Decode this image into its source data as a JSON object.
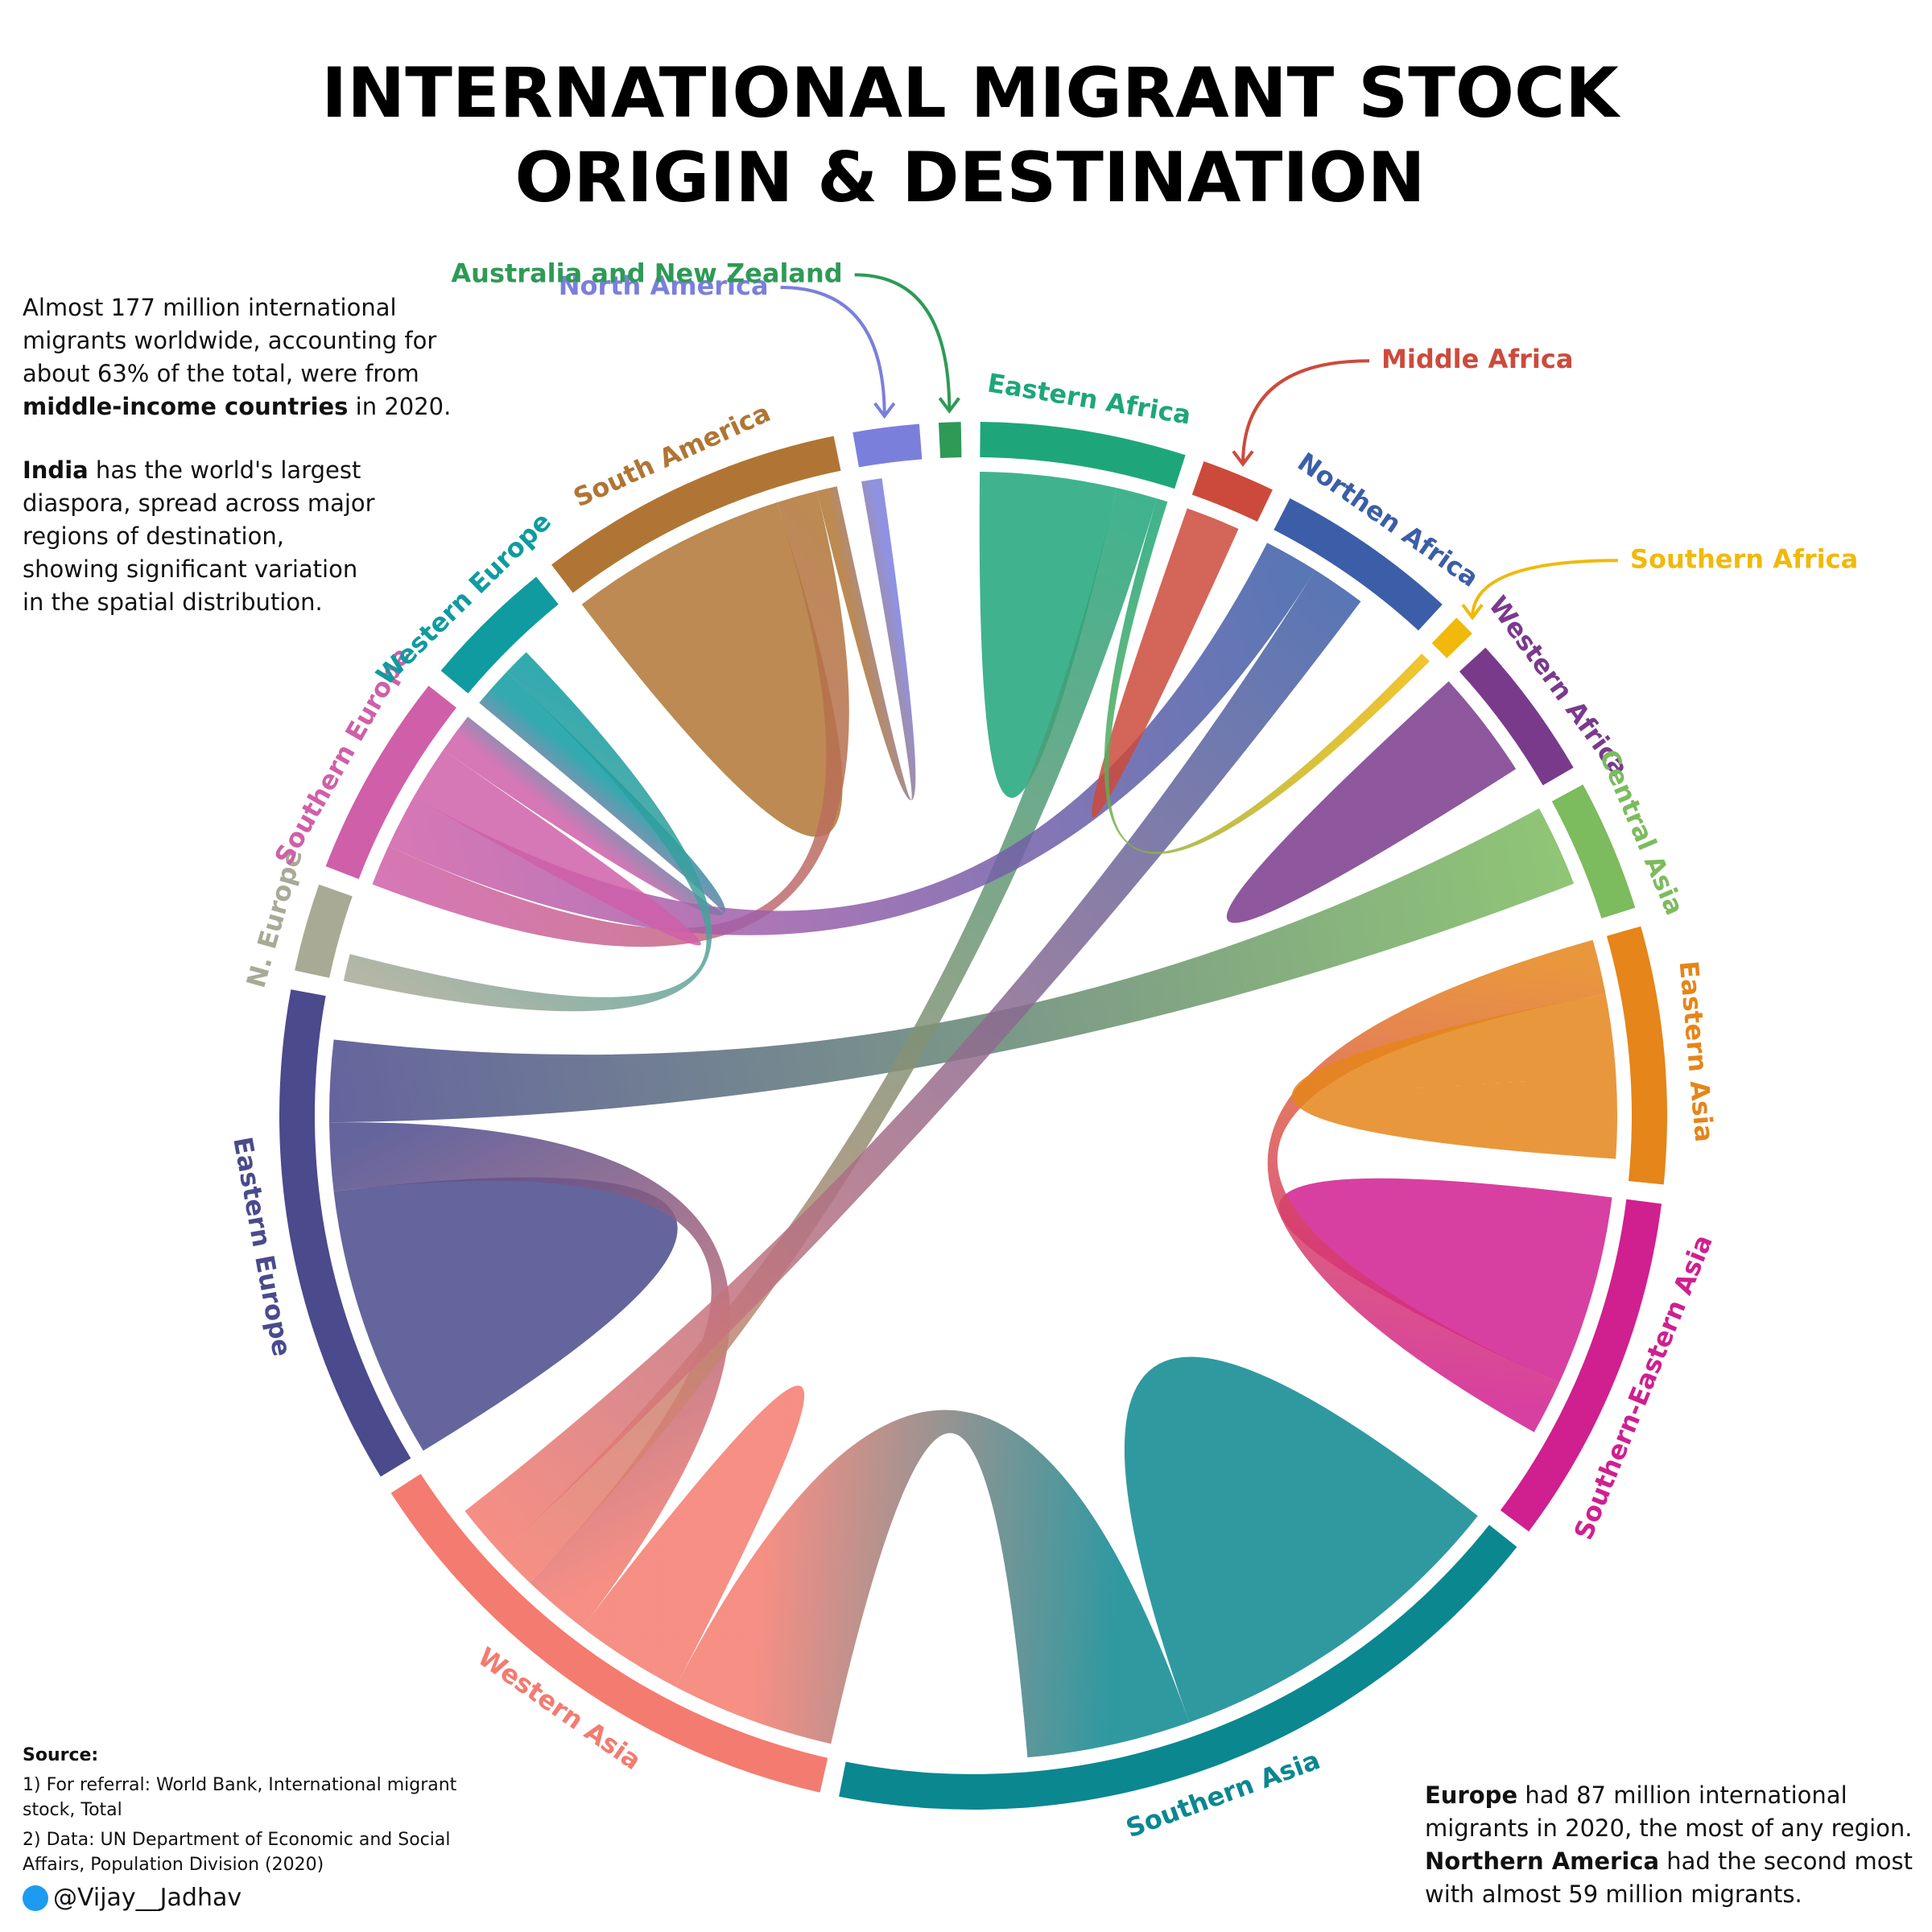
{
  "chart_data": {
    "type": "chord",
    "title": [
      "INTERNATIONAL MIGRANT STOCK",
      "ORIGIN & DESTINATION"
    ],
    "segments": [
      {
        "name": "North America",
        "color": "#7b7fdc",
        "value": 4.5
      },
      {
        "name": "Australia and New Zealand",
        "color": "#2e9a56",
        "value": 1.5
      },
      {
        "name": "Eastern Africa",
        "color": "#1ea67a",
        "value": 14
      },
      {
        "name": "Middle Africa",
        "color": "#cc4a3c",
        "value": 5
      },
      {
        "name": "Northen Africa",
        "color": "#3c5ea8",
        "value": 12.5
      },
      {
        "name": "Southern Africa",
        "color": "#f0b90b",
        "value": 1.5
      },
      {
        "name": "Western Africa",
        "color": "#7a3a8c",
        "value": 10
      },
      {
        "name": "Central Asia",
        "color": "#7cbb5e",
        "value": 9
      },
      {
        "name": "Eastern Asia",
        "color": "#e5851a",
        "value": 17.5
      },
      {
        "name": "Southern-Eastern Asia",
        "color": "#d01f8f",
        "value": 24
      },
      {
        "name": "Southern Asia",
        "color": "#0b8790",
        "value": 51
      },
      {
        "name": "Western Asia",
        "color": "#f47b6f",
        "value": 36
      },
      {
        "name": "Eastern Europe",
        "color": "#4a4a8c",
        "value": 34
      },
      {
        "name": "N. Europe",
        "color": "#a8aa96",
        "value": 6
      },
      {
        "name": "Southern Europe",
        "color": "#cf5fa9",
        "value": 14
      },
      {
        "name": "Western Europe",
        "color": "#0f9ba0",
        "value": 9
      },
      {
        "name": "South America",
        "color": "#b07534",
        "value": 21
      }
    ],
    "flows": [
      {
        "source": 10,
        "target": 10,
        "value": 13
      },
      {
        "source": 10,
        "target": 11,
        "value": 12
      },
      {
        "source": 11,
        "target": 11,
        "value": 4
      },
      {
        "source": 12,
        "target": 12,
        "value": 10
      },
      {
        "source": 12,
        "target": 11,
        "value": 5
      },
      {
        "source": 12,
        "target": 7,
        "value": 6
      },
      {
        "source": 9,
        "target": 9,
        "value": 7
      },
      {
        "source": 9,
        "target": 8,
        "value": 4
      },
      {
        "source": 8,
        "target": 8,
        "value": 6
      },
      {
        "source": 16,
        "target": 16,
        "value": 8
      },
      {
        "source": 16,
        "target": 14,
        "value": 3
      },
      {
        "source": 2,
        "target": 2,
        "value": 5
      },
      {
        "source": 2,
        "target": 11,
        "value": 3
      },
      {
        "source": 4,
        "target": 14,
        "value": 4
      },
      {
        "source": 4,
        "target": 11,
        "value": 4
      },
      {
        "source": 6,
        "target": 6,
        "value": 4
      },
      {
        "source": 14,
        "target": 14,
        "value": 2
      },
      {
        "source": 14,
        "target": 15,
        "value": 3
      },
      {
        "source": 13,
        "target": 15,
        "value": 2
      },
      {
        "source": 3,
        "target": 3,
        "value": 2
      },
      {
        "source": 0,
        "target": 16,
        "value": 1.5
      },
      {
        "source": 5,
        "target": 2,
        "value": 0.8
      }
    ],
    "notes": [
      [
        {
          "text": "Almost 177 million international migrants worldwide, accounting for about 63% of the total, were from ",
          "bold": false
        },
        {
          "text": "middle-income countries",
          "bold": true
        },
        {
          "text": " in 2020.",
          "bold": false
        }
      ],
      [
        {
          "text": "India",
          "bold": true
        },
        {
          "text": " has the world's largest diaspora, spread across major regions of destination, showing significant variation in the spatial distribution.",
          "bold": false
        }
      ],
      [
        {
          "text": "Europe",
          "bold": true
        },
        {
          "text": " had 87 million international migrants in 2020, the most of any region. ",
          "bold": false
        },
        {
          "text": "Northern America",
          "bold": true
        },
        {
          "text": " had the second most with almost 59 million migrants.",
          "bold": false
        }
      ]
    ],
    "source_title": "Source:",
    "sources": [
      "1) For referral: World Bank, International migrant stock, Total",
      "2) Data: UN Department of Economic and Social Affairs, Population Division (2020)"
    ],
    "credit": "@Vijay__Jadhav"
  }
}
